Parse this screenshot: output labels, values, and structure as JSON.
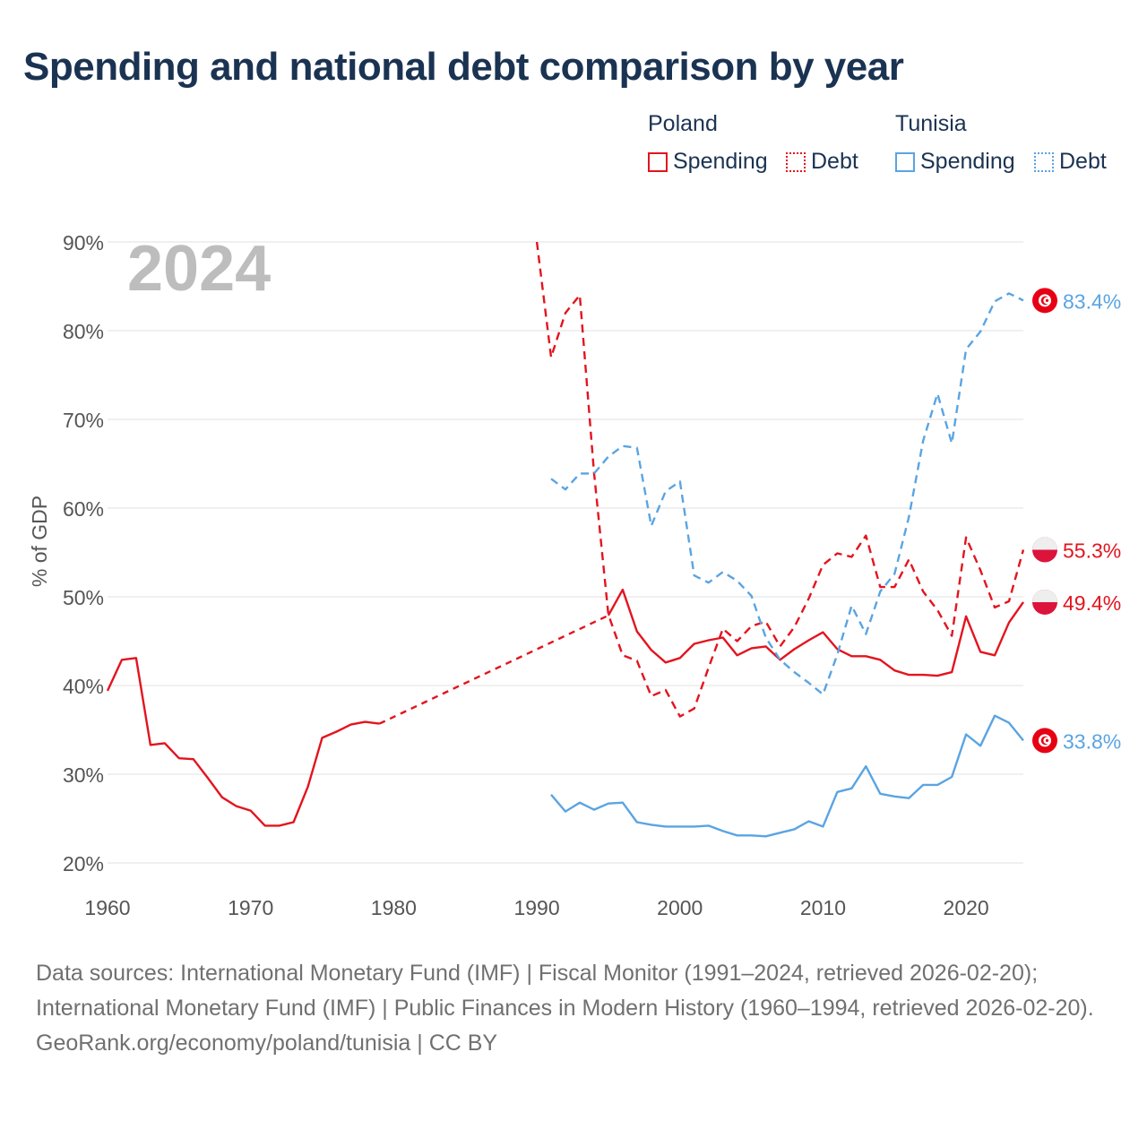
{
  "title": "Spending and national debt comparison by year",
  "legend": {
    "groups": [
      {
        "name": "Poland",
        "items": [
          {
            "label": "Spending",
            "style": "solid",
            "color": "#e3141e"
          },
          {
            "label": "Debt",
            "style": "dotted",
            "color": "#e3141e"
          }
        ]
      },
      {
        "name": "Tunisia",
        "items": [
          {
            "label": "Spending",
            "style": "solid",
            "color": "#5aa4e2"
          },
          {
            "label": "Debt",
            "style": "dotted",
            "color": "#5aa4e2"
          }
        ]
      }
    ]
  },
  "colors": {
    "poland": "#e3141e",
    "tunisia": "#5aa4e2",
    "year_watermark": "#bdbdbd",
    "grid": "#e6e6e6",
    "tick_text": "#555555"
  },
  "chart_data": {
    "type": "line",
    "year_label": "2024",
    "ylabel": "% of GDP",
    "xlim": [
      1960,
      2024
    ],
    "ylim": [
      20,
      90
    ],
    "x_ticks": [
      "1960",
      "1970",
      "1980",
      "1990",
      "2000",
      "2010",
      "2020"
    ],
    "y_ticks": [
      "20%",
      "30%",
      "40%",
      "50%",
      "60%",
      "70%",
      "80%",
      "90%"
    ],
    "series": [
      {
        "name": "Poland Spending",
        "country": "Poland",
        "measure": "Spending",
        "color": "#e3141e",
        "style": "solid",
        "points": [
          [
            1960,
            39.4
          ],
          [
            1961,
            42.9
          ],
          [
            1962,
            43.1
          ],
          [
            1963,
            33.3
          ],
          [
            1964,
            33.5
          ],
          [
            1965,
            31.8
          ],
          [
            1966,
            31.7
          ],
          [
            1967,
            29.6
          ],
          [
            1968,
            27.4
          ],
          [
            1969,
            26.4
          ],
          [
            1970,
            25.9
          ],
          [
            1971,
            24.2
          ],
          [
            1972,
            24.2
          ],
          [
            1973,
            24.6
          ],
          [
            1974,
            28.6
          ],
          [
            1975,
            34.1
          ],
          [
            1976,
            34.8
          ],
          [
            1977,
            35.6
          ],
          [
            1978,
            35.9
          ],
          [
            1979,
            35.7
          ]
        ],
        "gap": [
          [
            1979,
            35.7
          ],
          [
            1995,
            47.9
          ]
        ],
        "points2": [
          [
            1995,
            47.9
          ],
          [
            1996,
            50.8
          ],
          [
            1997,
            46.1
          ],
          [
            1998,
            44.0
          ],
          [
            1999,
            42.6
          ],
          [
            2000,
            43.1
          ],
          [
            2001,
            44.7
          ],
          [
            2002,
            45.1
          ],
          [
            2003,
            45.4
          ],
          [
            2004,
            43.4
          ],
          [
            2005,
            44.2
          ],
          [
            2006,
            44.4
          ],
          [
            2007,
            42.9
          ],
          [
            2008,
            44.1
          ],
          [
            2009,
            45.1
          ],
          [
            2010,
            46.0
          ],
          [
            2011,
            44.1
          ],
          [
            2012,
            43.3
          ],
          [
            2013,
            43.3
          ],
          [
            2014,
            42.9
          ],
          [
            2015,
            41.7
          ],
          [
            2016,
            41.2
          ],
          [
            2017,
            41.2
          ],
          [
            2018,
            41.1
          ],
          [
            2019,
            41.5
          ],
          [
            2020,
            47.8
          ],
          [
            2021,
            43.8
          ],
          [
            2022,
            43.4
          ],
          [
            2023,
            47.1
          ],
          [
            2024,
            49.4
          ]
        ]
      },
      {
        "name": "Poland Debt",
        "country": "Poland",
        "measure": "Debt",
        "color": "#e3141e",
        "style": "dashed",
        "points": [
          [
            1990,
            90.0
          ],
          [
            1991,
            77.0
          ],
          [
            1992,
            82.0
          ],
          [
            1993,
            84.0
          ],
          [
            1994,
            64.0
          ],
          [
            1995,
            48.0
          ],
          [
            1996,
            43.4
          ],
          [
            1997,
            42.8
          ],
          [
            1998,
            38.8
          ],
          [
            1999,
            39.5
          ],
          [
            2000,
            36.5
          ],
          [
            2001,
            37.4
          ],
          [
            2002,
            42.0
          ],
          [
            2003,
            46.4
          ],
          [
            2004,
            45.0
          ],
          [
            2005,
            46.7
          ],
          [
            2006,
            47.2
          ],
          [
            2007,
            44.4
          ],
          [
            2008,
            46.6
          ],
          [
            2009,
            49.8
          ],
          [
            2010,
            53.6
          ],
          [
            2011,
            54.9
          ],
          [
            2012,
            54.5
          ],
          [
            2013,
            56.9
          ],
          [
            2014,
            51.1
          ],
          [
            2015,
            51.1
          ],
          [
            2016,
            54.2
          ],
          [
            2017,
            50.6
          ],
          [
            2018,
            48.5
          ],
          [
            2019,
            45.6
          ],
          [
            2020,
            56.7
          ],
          [
            2021,
            53.0
          ],
          [
            2022,
            48.8
          ],
          [
            2023,
            49.5
          ],
          [
            2024,
            55.3
          ]
        ]
      },
      {
        "name": "Tunisia Spending",
        "country": "Tunisia",
        "measure": "Spending",
        "color": "#5aa4e2",
        "style": "solid",
        "points": [
          [
            1991,
            27.7
          ],
          [
            1992,
            25.8
          ],
          [
            1993,
            26.8
          ],
          [
            1994,
            26.0
          ],
          [
            1995,
            26.7
          ],
          [
            1996,
            26.8
          ],
          [
            1997,
            24.6
          ],
          [
            1998,
            24.3
          ],
          [
            1999,
            24.1
          ],
          [
            2000,
            24.1
          ],
          [
            2001,
            24.1
          ],
          [
            2002,
            24.2
          ],
          [
            2003,
            23.6
          ],
          [
            2004,
            23.1
          ],
          [
            2005,
            23.1
          ],
          [
            2006,
            23.0
          ],
          [
            2007,
            23.4
          ],
          [
            2008,
            23.8
          ],
          [
            2009,
            24.7
          ],
          [
            2010,
            24.1
          ],
          [
            2011,
            28.0
          ],
          [
            2012,
            28.4
          ],
          [
            2013,
            30.9
          ],
          [
            2014,
            27.8
          ],
          [
            2015,
            27.5
          ],
          [
            2016,
            27.3
          ],
          [
            2017,
            28.8
          ],
          [
            2018,
            28.8
          ],
          [
            2019,
            29.7
          ],
          [
            2020,
            34.5
          ],
          [
            2021,
            33.2
          ],
          [
            2022,
            36.6
          ],
          [
            2023,
            35.8
          ],
          [
            2024,
            33.8
          ]
        ]
      },
      {
        "name": "Tunisia Debt",
        "country": "Tunisia",
        "measure": "Debt",
        "color": "#5aa4e2",
        "style": "dashed",
        "points": [
          [
            1991,
            63.3
          ],
          [
            1992,
            62.1
          ],
          [
            1993,
            63.9
          ],
          [
            1994,
            63.9
          ],
          [
            1995,
            65.8
          ],
          [
            1996,
            67.0
          ],
          [
            1997,
            66.8
          ],
          [
            1998,
            58.0
          ],
          [
            1999,
            61.9
          ],
          [
            2000,
            63.0
          ],
          [
            2001,
            52.4
          ],
          [
            2002,
            51.6
          ],
          [
            2003,
            52.8
          ],
          [
            2004,
            51.8
          ],
          [
            2005,
            50.1
          ],
          [
            2006,
            45.4
          ],
          [
            2007,
            42.9
          ],
          [
            2008,
            41.5
          ],
          [
            2009,
            40.3
          ],
          [
            2010,
            39.0
          ],
          [
            2011,
            43.5
          ],
          [
            2012,
            49.0
          ],
          [
            2013,
            45.8
          ],
          [
            2014,
            50.6
          ],
          [
            2015,
            52.6
          ],
          [
            2016,
            59.0
          ],
          [
            2017,
            67.6
          ],
          [
            2018,
            72.9
          ],
          [
            2019,
            67.3
          ],
          [
            2020,
            77.9
          ],
          [
            2021,
            79.9
          ],
          [
            2022,
            83.3
          ],
          [
            2023,
            84.2
          ],
          [
            2024,
            83.4
          ]
        ]
      }
    ],
    "end_labels": [
      {
        "text": "83.4%",
        "value": 83.4,
        "country": "Tunisia",
        "color": "#5aa4e2",
        "flag": "tunisia-flag"
      },
      {
        "text": "55.3%",
        "value": 55.3,
        "country": "Poland",
        "color": "#e3141e",
        "flag": "poland-flag"
      },
      {
        "text": "49.4%",
        "value": 49.4,
        "country": "Poland",
        "color": "#e3141e",
        "flag": "poland-flag"
      },
      {
        "text": "33.8%",
        "value": 33.8,
        "country": "Tunisia",
        "color": "#5aa4e2",
        "flag": "tunisia-flag"
      }
    ]
  },
  "footer": {
    "sources": "Data sources: International Monetary Fund (IMF) | Fiscal Monitor (1991–2024, retrieved 2026-02-20); International Monetary Fund (IMF) | Public Finances in Modern History (1960–1994, retrieved 2026-02-20).",
    "credit": "GeoRank.org/economy/poland/tunisia | CC BY"
  }
}
